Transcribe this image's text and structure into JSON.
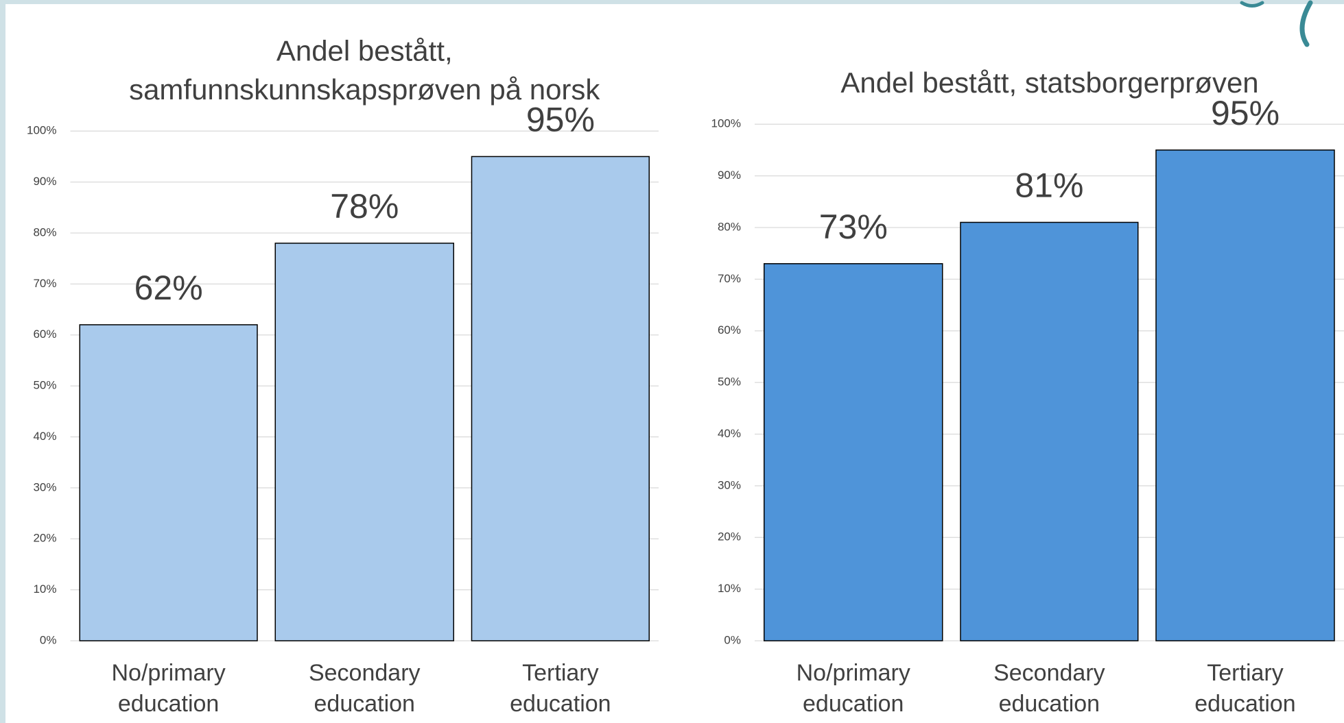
{
  "chart_data": [
    {
      "type": "bar",
      "title": [
        "Andel bestått,",
        "samfunnskunnskapsprøven på norsk"
      ],
      "categories": [
        "No/primary education",
        "Secondary education",
        "Tertiary education"
      ],
      "values": [
        62,
        78,
        95
      ],
      "value_labels": [
        "62%",
        "78%",
        "95%"
      ],
      "color": "#a9caec",
      "ylim": [
        0,
        100
      ],
      "yticks": [
        {
          "value": 0,
          "label": "0%"
        },
        {
          "value": 10,
          "label": "10%"
        },
        {
          "value": 20,
          "label": "20%"
        },
        {
          "value": 30,
          "label": "30%"
        },
        {
          "value": 40,
          "label": "40%"
        },
        {
          "value": 50,
          "label": "50%"
        },
        {
          "value": 60,
          "label": "60%"
        },
        {
          "value": 70,
          "label": "70%"
        },
        {
          "value": 80,
          "label": "80%"
        },
        {
          "value": 90,
          "label": "90%"
        },
        {
          "value": 100,
          "label": "100%"
        }
      ],
      "grid": true
    },
    {
      "type": "bar",
      "title": [
        "Andel bestått, statsborgerprøven"
      ],
      "categories": [
        "No/primary education",
        "Secondary education",
        "Tertiary education"
      ],
      "values": [
        73,
        81,
        95
      ],
      "value_labels": [
        "73%",
        "81%",
        "95%"
      ],
      "color": "#4f94d9",
      "ylim": [
        0,
        100
      ],
      "yticks": [
        {
          "value": 0,
          "label": "0%"
        },
        {
          "value": 10,
          "label": "10%"
        },
        {
          "value": 20,
          "label": "20%"
        },
        {
          "value": 30,
          "label": "30%"
        },
        {
          "value": 40,
          "label": "40%"
        },
        {
          "value": 50,
          "label": "50%"
        },
        {
          "value": 60,
          "label": "60%"
        },
        {
          "value": 70,
          "label": "70%"
        },
        {
          "value": 80,
          "label": "80%"
        },
        {
          "value": 90,
          "label": "90%"
        },
        {
          "value": 100,
          "label": "100%"
        }
      ],
      "grid": true
    }
  ]
}
